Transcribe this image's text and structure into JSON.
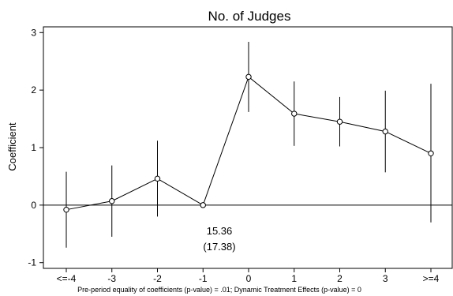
{
  "chart_data": {
    "type": "line",
    "title": "No. of Judges",
    "ylabel": "Coefficient",
    "xlabel": "",
    "note": "Pre-period equality of coefficients (p-value) = .01; Dynamic Treatment Effects (p-value) = 0",
    "categories": [
      "<=-4",
      "-3",
      "-2",
      "-1",
      "0",
      "1",
      "2",
      "3",
      ">=4"
    ],
    "series": [
      {
        "values": [
          -0.08,
          0.07,
          0.46,
          0.0,
          2.23,
          1.59,
          1.45,
          1.28,
          0.9
        ],
        "ci_low": [
          -0.74,
          -0.55,
          -0.2,
          0.0,
          1.62,
          1.03,
          1.02,
          0.57,
          -0.3
        ],
        "ci_high": [
          0.58,
          0.69,
          1.12,
          0.0,
          2.84,
          2.15,
          1.88,
          1.99,
          2.11
        ]
      }
    ],
    "ylim": [
      -1.1,
      3.1
    ],
    "yticks": [
      -1,
      0,
      1,
      2,
      3
    ],
    "reference_line": 0,
    "annotation": {
      "value": "15.36",
      "se": "(17.38)"
    },
    "grid": false,
    "legend": "none"
  }
}
